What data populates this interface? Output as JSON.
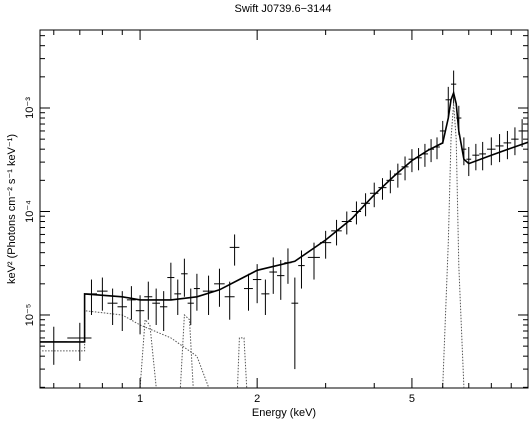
{
  "chart_data": {
    "type": "errorbar",
    "title": "Swift J0739.6−3144",
    "xlabel": "Energy (keV)",
    "ylabel": "keV² (Photons cm⁻² s⁻¹ keV⁻¹)",
    "xscale": "log",
    "yscale": "log",
    "xlim": [
      0.553,
      9.94
    ],
    "ylim": [
      1.97e-06,
      0.00567
    ],
    "xticks": [
      1,
      2,
      5
    ],
    "xminorticks": [
      0.6,
      0.7,
      0.8,
      0.9,
      3,
      4,
      6,
      7,
      8,
      9
    ],
    "yticks": [
      {
        "value": 1e-05,
        "label": "10⁻⁵"
      },
      {
        "value": 0.0001,
        "label": "10⁻⁴"
      },
      {
        "value": 0.001,
        "label": "10⁻³"
      }
    ],
    "yminorticks": [
      2e-06,
      3e-06,
      4e-06,
      5e-06,
      6e-06,
      7e-06,
      8e-06,
      9e-06,
      2e-05,
      3e-05,
      4e-05,
      5e-05,
      6e-05,
      7e-05,
      8e-05,
      9e-05,
      0.0002,
      0.0003,
      0.0004,
      0.0005,
      0.0006,
      0.0007,
      0.0008,
      0.0009,
      0.002,
      0.003,
      0.004,
      0.005
    ],
    "points": {
      "color": "#000000",
      "x": [
        0.6,
        0.7,
        0.75,
        0.8,
        0.85,
        0.9,
        0.95,
        1.0,
        1.05,
        1.1,
        1.15,
        1.2,
        1.25,
        1.3,
        1.35,
        1.4,
        1.5,
        1.6,
        1.7,
        1.75,
        1.9,
        2.0,
        2.1,
        2.2,
        2.3,
        2.4,
        2.5,
        2.6,
        2.8,
        3.0,
        3.2,
        3.4,
        3.6,
        3.8,
        4.0,
        4.2,
        4.4,
        4.6,
        4.8,
        5.0,
        5.2,
        5.4,
        5.6,
        5.8,
        6.0,
        6.2,
        6.4,
        6.6,
        6.8,
        7.0,
        7.3,
        7.6,
        8.0,
        8.4,
        8.8,
        9.2,
        9.6
      ],
      "xerr": [
        0.05,
        0.05,
        0.025,
        0.025,
        0.025,
        0.025,
        0.025,
        0.025,
        0.025,
        0.025,
        0.025,
        0.025,
        0.025,
        0.025,
        0.025,
        0.025,
        0.05,
        0.05,
        0.05,
        0.05,
        0.05,
        0.05,
        0.05,
        0.05,
        0.05,
        0.05,
        0.05,
        0.05,
        0.1,
        0.1,
        0.1,
        0.1,
        0.1,
        0.1,
        0.1,
        0.1,
        0.1,
        0.1,
        0.1,
        0.1,
        0.1,
        0.1,
        0.1,
        0.1,
        0.1,
        0.1,
        0.1,
        0.1,
        0.1,
        0.1,
        0.15,
        0.15,
        0.2,
        0.2,
        0.2,
        0.2,
        0.2
      ],
      "y": [
        5.5e-06,
        6e-06,
        1.6e-05,
        1.7e-05,
        1.3e-05,
        1.2e-05,
        1.4e-05,
        1.1e-05,
        1.5e-05,
        1.3e-05,
        1.2e-05,
        2.3e-05,
        1.6e-05,
        2.5e-05,
        1.3e-05,
        1.8e-05,
        1.7e-05,
        2e-05,
        1.5e-05,
        4.5e-05,
        1.8e-05,
        2.2e-05,
        1.6e-05,
        2.6e-05,
        2.4e-05,
        3.2e-05,
        1.3e-05,
        3e-05,
        3.6e-05,
        5e-05,
        6.5e-05,
        8e-05,
        0.0001,
        0.00012,
        0.00015,
        0.00017,
        0.0002,
        0.00023,
        0.00027,
        0.00032,
        0.00033,
        0.00036,
        0.0004,
        0.00042,
        0.0006,
        0.0012,
        0.0017,
        0.0008,
        0.0004,
        0.00032,
        0.00035,
        0.00036,
        0.0004,
        0.00043,
        0.00046,
        0.0005,
        0.0006
      ],
      "yerr": [
        2.2e-06,
        2.4e-06,
        6e-06,
        6e-06,
        5e-06,
        5e-06,
        5e-06,
        4.5e-06,
        6e-06,
        5e-06,
        5e-06,
        9e-06,
        6e-06,
        1e-05,
        5e-06,
        7e-06,
        7e-06,
        8e-06,
        6e-06,
        1.5e-05,
        7e-06,
        9e-06,
        6e-06,
        1e-05,
        1e-05,
        1.2e-05,
        1e-05,
        1.2e-05,
        1.4e-05,
        1.5e-05,
        1.8e-05,
        2e-05,
        2.5e-05,
        3e-05,
        4e-05,
        4e-05,
        5e-05,
        6e-05,
        7e-05,
        8e-05,
        8e-05,
        9e-05,
        0.0001,
        0.0001,
        0.00015,
        0.0004,
        0.0006,
        0.00025,
        0.00012,
        0.0001,
        0.0001,
        0.00011,
        0.00012,
        0.00013,
        0.00014,
        0.00015,
        0.00018
      ]
    },
    "model": {
      "color": "#000000",
      "x": [
        0.55,
        0.72,
        0.72,
        0.9,
        1.0,
        1.2,
        1.4,
        1.6,
        1.8,
        2.0,
        2.5,
        3.0,
        3.5,
        4.0,
        4.5,
        5.0,
        5.5,
        6.0,
        6.2,
        6.3,
        6.4,
        6.5,
        6.6,
        6.8,
        7.0,
        8.0,
        9.0,
        10.0
      ],
      "y": [
        5.5e-06,
        5.5e-06,
        1.6e-05,
        1.5e-05,
        1.4e-05,
        1.4e-05,
        1.5e-05,
        1.75e-05,
        2.2e-05,
        2.7e-05,
        3.3e-05,
        5.3e-05,
        8.5e-05,
        0.000145,
        0.00022,
        0.00031,
        0.00039,
        0.00046,
        0.0008,
        0.0012,
        0.0014,
        0.0011,
        0.0006,
        0.00032,
        0.00029,
        0.00035,
        0.00041,
        0.00047
      ]
    },
    "components": [
      {
        "color": "#555555",
        "x": [
          0.55,
          0.72,
          0.72,
          0.9,
          1.0,
          1.2,
          1.4,
          1.5
        ],
        "y": [
          4.5e-06,
          4.5e-06,
          1.1e-05,
          1e-05,
          8e-06,
          6e-06,
          4e-06,
          2e-06
        ]
      },
      {
        "color": "#555555",
        "x": [
          1.0,
          1.03,
          1.06,
          1.1
        ],
        "y": [
          2e-06,
          9e-06,
          8e-06,
          2e-06
        ]
      },
      {
        "color": "#555555",
        "x": [
          1.27,
          1.3,
          1.34,
          1.37
        ],
        "y": [
          2e-06,
          1e-05,
          9e-06,
          2e-06
        ]
      },
      {
        "color": "#555555",
        "x": [
          1.78,
          1.8,
          1.85,
          1.88
        ],
        "y": [
          2e-06,
          6e-06,
          6e-06,
          2e-06
        ]
      },
      {
        "color": "#555555",
        "x": [
          6.0,
          6.2,
          6.3,
          6.4,
          6.5,
          6.6,
          6.8
        ],
        "y": [
          2e-06,
          5e-05,
          0.0005,
          0.0011,
          0.0005,
          3e-05,
          2e-06
        ]
      }
    ]
  }
}
